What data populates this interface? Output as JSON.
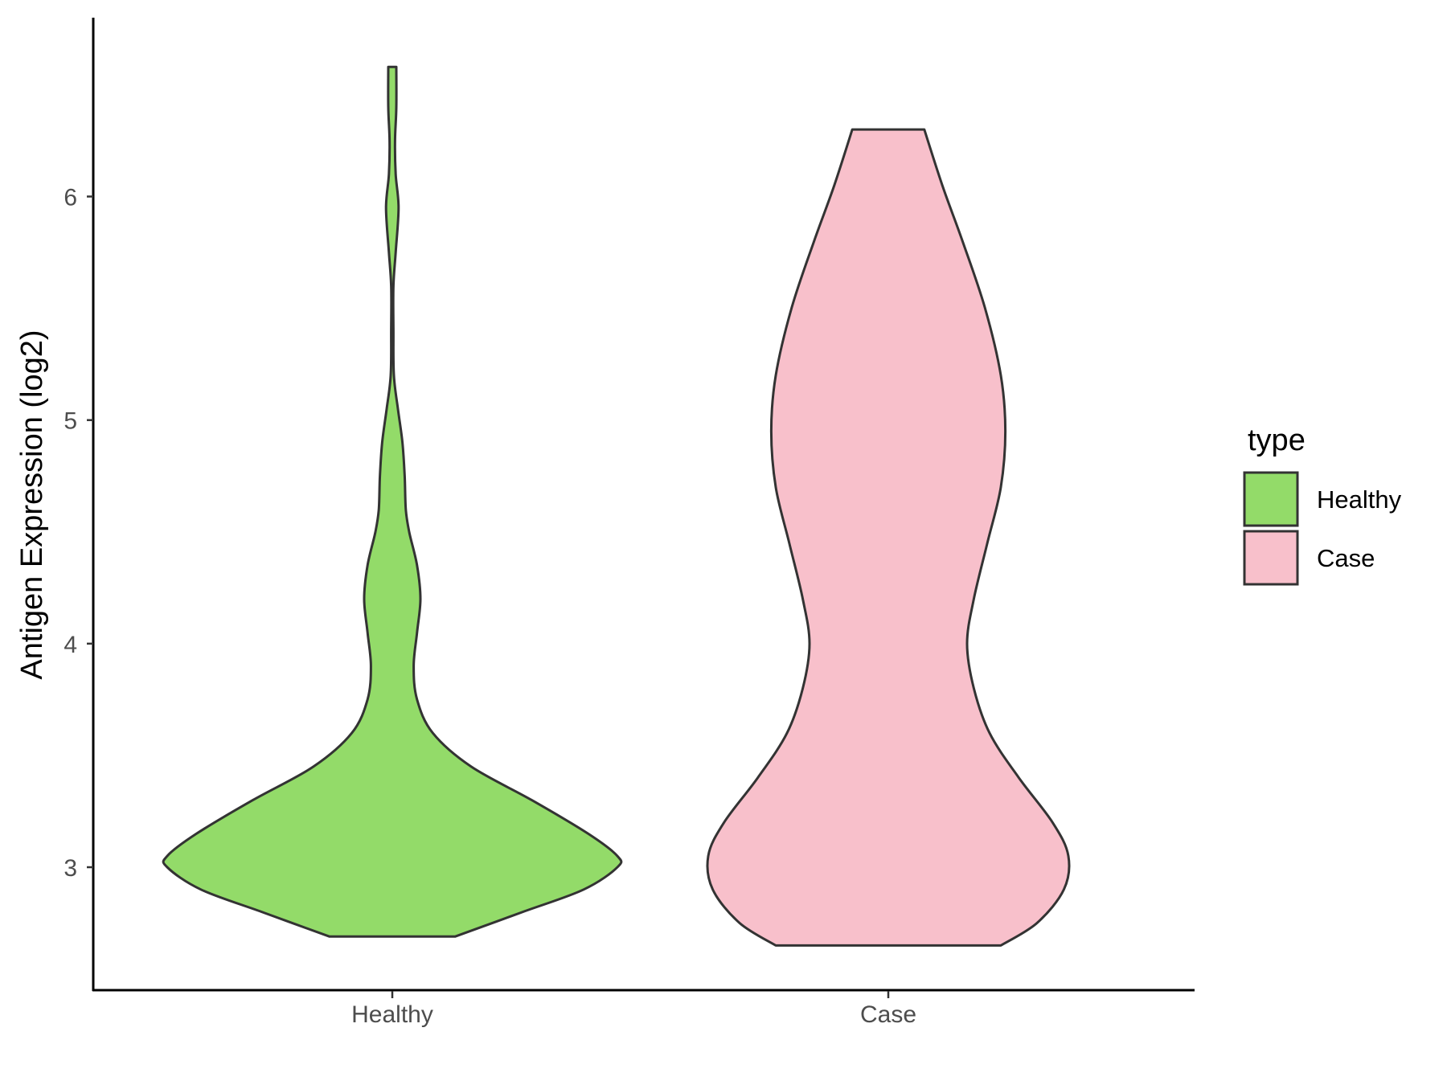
{
  "chart_data": {
    "type": "violin",
    "title": "",
    "xlabel": "",
    "ylabel": "Antigen Expression (log2)",
    "ylim": [
      2.45,
      6.8
    ],
    "yticks": [
      3,
      4,
      5,
      6
    ],
    "categories": [
      "Healthy",
      "Case"
    ],
    "grid": false,
    "legend": {
      "title": "type",
      "position": "right",
      "entries": [
        "Healthy",
        "Case"
      ]
    },
    "outline_color": "#333333",
    "series": [
      {
        "name": "Healthy",
        "color": "#93DB69",
        "min": 2.69,
        "max": 6.58,
        "density_profile": [
          [
            2.69,
            0.28
          ],
          [
            2.8,
            0.58
          ],
          [
            2.9,
            0.85
          ],
          [
            3.0,
            1.0
          ],
          [
            3.05,
            1.0
          ],
          [
            3.15,
            0.87
          ],
          [
            3.3,
            0.62
          ],
          [
            3.45,
            0.35
          ],
          [
            3.6,
            0.18
          ],
          [
            3.75,
            0.11
          ],
          [
            3.9,
            0.095
          ],
          [
            4.05,
            0.11
          ],
          [
            4.2,
            0.125
          ],
          [
            4.35,
            0.11
          ],
          [
            4.5,
            0.075
          ],
          [
            4.6,
            0.06
          ],
          [
            4.75,
            0.055
          ],
          [
            4.9,
            0.045
          ],
          [
            5.05,
            0.025
          ],
          [
            5.2,
            0.007
          ],
          [
            5.4,
            0.005
          ],
          [
            5.6,
            0.005
          ],
          [
            5.75,
            0.015
          ],
          [
            5.95,
            0.028
          ],
          [
            6.1,
            0.015
          ],
          [
            6.25,
            0.012
          ],
          [
            6.4,
            0.018
          ],
          [
            6.58,
            0.018
          ]
        ]
      },
      {
        "name": "Case",
        "color": "#F8C0CB",
        "min": 2.65,
        "max": 6.3,
        "density_profile": [
          [
            2.65,
            0.5
          ],
          [
            2.75,
            0.66
          ],
          [
            2.9,
            0.78
          ],
          [
            3.05,
            0.8
          ],
          [
            3.2,
            0.73
          ],
          [
            3.4,
            0.58
          ],
          [
            3.6,
            0.45
          ],
          [
            3.8,
            0.38
          ],
          [
            4.0,
            0.35
          ],
          [
            4.2,
            0.38
          ],
          [
            4.45,
            0.44
          ],
          [
            4.7,
            0.5
          ],
          [
            4.95,
            0.52
          ],
          [
            5.2,
            0.5
          ],
          [
            5.5,
            0.43
          ],
          [
            5.8,
            0.33
          ],
          [
            6.05,
            0.24
          ],
          [
            6.3,
            0.16
          ]
        ]
      }
    ]
  }
}
